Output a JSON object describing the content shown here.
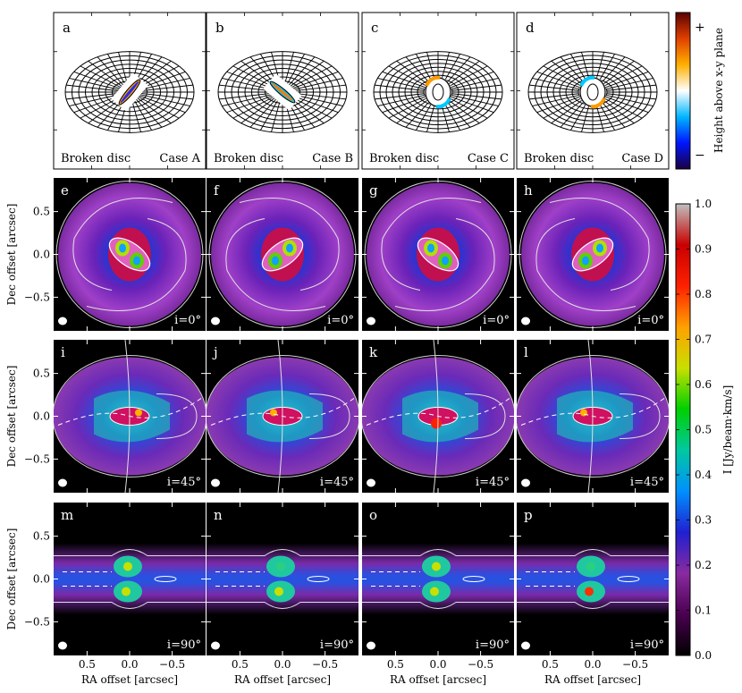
{
  "chart_data": {
    "type": "figure-grid",
    "top_row": [
      {
        "letter": "a",
        "left_label": "Broken disc",
        "right_label": "Case A"
      },
      {
        "letter": "b",
        "left_label": "Broken disc",
        "right_label": "Case B"
      },
      {
        "letter": "c",
        "left_label": "Broken disc",
        "right_label": "Case C"
      },
      {
        "letter": "d",
        "left_label": "Broken disc",
        "right_label": "Case D"
      }
    ],
    "top_colorbar": {
      "label": "Height above x-y plane",
      "plus_label": "+",
      "minus_label": "−",
      "colors": [
        "#1a0040",
        "#0016ff",
        "#00b6ff",
        "#ffffff",
        "#ffb000",
        "#e04000",
        "#5a0000"
      ]
    },
    "image_rows": [
      {
        "inclination": "i=0°",
        "panels": [
          "e",
          "f",
          "g",
          "h"
        ]
      },
      {
        "inclination": "i=45°",
        "panels": [
          "i",
          "j",
          "k",
          "l"
        ]
      },
      {
        "inclination": "i=90°",
        "panels": [
          "m",
          "n",
          "o",
          "p"
        ]
      }
    ],
    "ylabel": "Dec offset [arcsec]",
    "xlabel": "RA offset [arcsec]",
    "y_ticks": [
      "0.5",
      "0.0",
      "−0.5"
    ],
    "x_ticks": [
      "0.5",
      "0.0",
      "−0.5"
    ],
    "intensity_colorbar": {
      "label": "I [Jy/beam·km/s]",
      "range": [
        0.0,
        1.0
      ],
      "ticks": [
        "1.0",
        "0.9",
        "0.8",
        "0.7",
        "0.6",
        "0.5",
        "0.4",
        "0.3",
        "0.2",
        "0.1",
        "0.0"
      ],
      "colors": [
        "#000000",
        "#4a0050",
        "#8a2aa0",
        "#2020d0",
        "#0090ff",
        "#00c8a0",
        "#00d000",
        "#c8e000",
        "#ffa000",
        "#ff2000",
        "#c80000",
        "#c0c0c0"
      ]
    }
  }
}
